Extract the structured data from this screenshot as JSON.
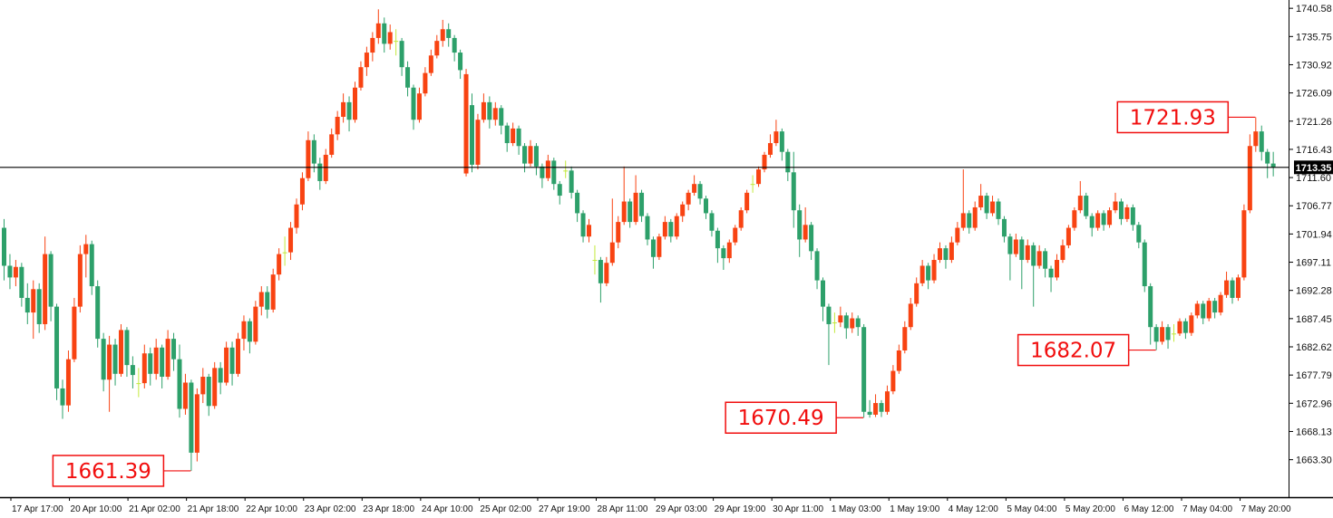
{
  "chart_data": {
    "type": "candlestick",
    "legend_position": "none",
    "grid": false,
    "colors": {
      "up": "#f84312",
      "down": "#2da06a",
      "doji": "#c3e93c",
      "annotation": "#f10e0e",
      "current_price_line": "#000000",
      "tag_bg": "#000000",
      "tag_text": "#ffffff",
      "axis_line": "#000000",
      "background": "#ffffff"
    },
    "price_axis": {
      "side": "right",
      "ticks": [
        "1740.58",
        "1735.75",
        "1730.92",
        "1726.09",
        "1721.26",
        "1716.43",
        "1711.60",
        "1706.77",
        "1701.94",
        "1697.11",
        "1692.28",
        "1687.45",
        "1682.62",
        "1677.79",
        "1672.96",
        "1668.13",
        "1663.30"
      ],
      "current_price": 1713.35,
      "current_price_label": "1713.35"
    },
    "time_axis": {
      "labels": [
        "17 Apr 17:00",
        "20 Apr 10:00",
        "21 Apr 02:00",
        "21 Apr 18:00",
        "22 Apr 10:00",
        "23 Apr 02:00",
        "23 Apr 18:00",
        "24 Apr 10:00",
        "25 Apr 02:00",
        "27 Apr 19:00",
        "28 Apr 11:00",
        "29 Apr 03:00",
        "29 Apr 19:00",
        "30 Apr 11:00",
        "1 May 03:00",
        "1 May 19:00",
        "4 May 12:00",
        "5 May 04:00",
        "5 May 20:00",
        "6 May 12:00",
        "7 May 04:00",
        "7 May 20:00"
      ]
    },
    "annotations": [
      {
        "label": "1661.39",
        "price": 1661.39,
        "candle_index": 32
      },
      {
        "label": "1670.49",
        "price": 1670.49,
        "candle_index": 147
      },
      {
        "label": "1682.07",
        "price": 1682.07,
        "candle_index": 197
      },
      {
        "label": "1721.93",
        "price": 1721.93,
        "candle_index": 214
      }
    ],
    "candles": [
      [
        1703,
        1704.5,
        1694,
        1696.5
      ],
      [
        1696.5,
        1698.5,
        1692.5,
        1694.5
      ],
      [
        1694.5,
        1697.5,
        1693,
        1696.3
      ],
      [
        1696.3,
        1697,
        1689.5,
        1691
      ],
      [
        1691,
        1693.5,
        1686.5,
        1688.5
      ],
      [
        1688.5,
        1694,
        1684,
        1692.5
      ],
      [
        1692.5,
        1693.5,
        1685,
        1686.5
      ],
      [
        1686.5,
        1701.5,
        1685.5,
        1698.5
      ],
      [
        1698.5,
        1699,
        1687,
        1689.5
      ],
      [
        1689.5,
        1690,
        1673.5,
        1675.5
      ],
      [
        1675.5,
        1677,
        1670.3,
        1672.6
      ],
      [
        1672.6,
        1682,
        1671.5,
        1680.5
      ],
      [
        1680.5,
        1691,
        1680,
        1689.5
      ],
      [
        1689.5,
        1700,
        1688.5,
        1698.5
      ],
      [
        1698.5,
        1701.8,
        1694.5,
        1700.2
      ],
      [
        1700.2,
        1700.8,
        1691.5,
        1693
      ],
      [
        1693,
        1694,
        1682.5,
        1684
      ],
      [
        1684,
        1685,
        1675,
        1677
      ],
      [
        1677,
        1684.5,
        1671.5,
        1683
      ],
      [
        1683,
        1684,
        1676,
        1678
      ],
      [
        1678,
        1686.5,
        1677.5,
        1685.5
      ],
      [
        1685.5,
        1686,
        1677.5,
        1679.5
      ],
      [
        1679.5,
        1681,
        1675.5,
        1677.8
      ],
      [
        1676.4,
        1679,
        1674,
        1676.4
      ],
      [
        1676.4,
        1683,
        1675.5,
        1681.5
      ],
      [
        1681.5,
        1682.5,
        1676,
        1678
      ],
      [
        1678,
        1684,
        1677,
        1682.5
      ],
      [
        1682.5,
        1683,
        1675.5,
        1677.5
      ],
      [
        1677.5,
        1685.5,
        1677,
        1684
      ],
      [
        1684,
        1685,
        1678.5,
        1680.5
      ],
      [
        1680.5,
        1683,
        1670.5,
        1672
      ],
      [
        1672,
        1678,
        1671,
        1676.5
      ],
      [
        1676.5,
        1677,
        1661.39,
        1664.5
      ],
      [
        1664.5,
        1675.5,
        1663,
        1674.5
      ],
      [
        1674.5,
        1679,
        1673,
        1677.5
      ],
      [
        1677.5,
        1678,
        1670.8,
        1672.5
      ],
      [
        1672.5,
        1680,
        1672,
        1679
      ],
      [
        1679,
        1680,
        1674.5,
        1676.5
      ],
      [
        1676.5,
        1683.5,
        1676,
        1682.5
      ],
      [
        1682.5,
        1683.5,
        1676,
        1678
      ],
      [
        1678,
        1685,
        1677.5,
        1684
      ],
      [
        1684,
        1688,
        1682,
        1687
      ],
      [
        1687,
        1687.5,
        1681.5,
        1683.5
      ],
      [
        1683.5,
        1690.5,
        1683,
        1689.5
      ],
      [
        1689.5,
        1693,
        1688,
        1692
      ],
      [
        1692,
        1693,
        1687.5,
        1689
      ],
      [
        1689,
        1696,
        1688.5,
        1695
      ],
      [
        1695,
        1699.5,
        1694,
        1698.5
      ],
      [
        1698.8,
        1701.5,
        1696.5,
        1698.8
      ],
      [
        1698.8,
        1704,
        1697.5,
        1703
      ],
      [
        1703,
        1708,
        1702,
        1707
      ],
      [
        1707,
        1712.5,
        1706,
        1711.5
      ],
      [
        1711.5,
        1719.5,
        1711,
        1718
      ],
      [
        1718,
        1719,
        1712.5,
        1714
      ],
      [
        1714,
        1715,
        1709.5,
        1711
      ],
      [
        1711,
        1716.5,
        1710.5,
        1715.5
      ],
      [
        1715.5,
        1720,
        1715,
        1719
      ],
      [
        1719,
        1723,
        1718,
        1722
      ],
      [
        1722,
        1726,
        1721,
        1724.5
      ],
      [
        1724.5,
        1725.5,
        1719.5,
        1721.5
      ],
      [
        1721.5,
        1728,
        1721,
        1727
      ],
      [
        1727,
        1731.5,
        1726.5,
        1730.5
      ],
      [
        1730.5,
        1734,
        1729,
        1733
      ],
      [
        1733,
        1736.5,
        1731.5,
        1735.5
      ],
      [
        1735.5,
        1740.4,
        1734.5,
        1738
      ],
      [
        1738,
        1739,
        1733,
        1734.5
      ],
      [
        1734.5,
        1737.8,
        1733.5,
        1736.5
      ],
      [
        1735,
        1737,
        1732.5,
        1735
      ],
      [
        1735,
        1735.5,
        1729,
        1730.5
      ],
      [
        1730.5,
        1731.5,
        1725.5,
        1727
      ],
      [
        1727,
        1727.5,
        1719.8,
        1721.5
      ],
      [
        1721.5,
        1727,
        1721,
        1726
      ],
      [
        1726,
        1730.5,
        1725.5,
        1729.5
      ],
      [
        1729.5,
        1733.5,
        1729,
        1732.5
      ],
      [
        1732.5,
        1736,
        1732,
        1735
      ],
      [
        1735,
        1738.6,
        1734,
        1737
      ],
      [
        1737,
        1738,
        1734,
        1735.5
      ],
      [
        1735.5,
        1736,
        1731.5,
        1733
      ],
      [
        1733,
        1733.5,
        1728.5,
        1730
      ],
      [
        1712.3,
        1730.2,
        1711.8,
        1729.3
      ],
      [
        1724,
        1726,
        1712.5,
        1713.8
      ],
      [
        1713.8,
        1722.5,
        1713,
        1721.5
      ],
      [
        1721.5,
        1726,
        1721,
        1724.5
      ],
      [
        1724.5,
        1725.5,
        1720,
        1721.5
      ],
      [
        1721.5,
        1724.5,
        1720.5,
        1723.5
      ],
      [
        1723.5,
        1724,
        1719,
        1720.5
      ],
      [
        1720.5,
        1721,
        1716,
        1717.5
      ],
      [
        1717.5,
        1721,
        1717,
        1720
      ],
      [
        1720,
        1720.5,
        1715.5,
        1717
      ],
      [
        1717,
        1717.5,
        1712.5,
        1714
      ],
      [
        1714,
        1718,
        1713.5,
        1717
      ],
      [
        1717,
        1717.5,
        1712,
        1713.5
      ],
      [
        1713.5,
        1714,
        1709.8,
        1711.5
      ],
      [
        1711.5,
        1715.5,
        1711,
        1714.5
      ],
      [
        1714.5,
        1715,
        1709.5,
        1710.5
      ],
      [
        1710.5,
        1711,
        1707,
        1708.5
      ],
      [
        1712.8,
        1714.5,
        1711.5,
        1712.8
      ],
      [
        1712.8,
        1713.5,
        1708,
        1709
      ],
      [
        1709,
        1709.5,
        1704,
        1705.5
      ],
      [
        1705.5,
        1706,
        1700.5,
        1701.5
      ],
      [
        1701.5,
        1704.5,
        1700.5,
        1703.5
      ],
      [
        1697.5,
        1700,
        1695,
        1697.5
      ],
      [
        1697.5,
        1698,
        1690.2,
        1693.5
      ],
      [
        1693.5,
        1698,
        1693,
        1697
      ],
      [
        1697,
        1708,
        1696.5,
        1700.5
      ],
      [
        1700.5,
        1705,
        1699.5,
        1704
      ],
      [
        1704,
        1713.5,
        1703.5,
        1707.5
      ],
      [
        1707.5,
        1708,
        1703,
        1704
      ],
      [
        1704,
        1712,
        1703.5,
        1709
      ],
      [
        1709,
        1709.5,
        1704,
        1705
      ],
      [
        1705,
        1705.5,
        1700,
        1701
      ],
      [
        1701,
        1701.5,
        1696,
        1698
      ],
      [
        1698,
        1702,
        1697.5,
        1701.5
      ],
      [
        1701.5,
        1705,
        1701,
        1704
      ],
      [
        1704,
        1704.5,
        1700.5,
        1701.5
      ],
      [
        1701.5,
        1705.5,
        1701,
        1705
      ],
      [
        1705,
        1707.5,
        1704,
        1707
      ],
      [
        1707,
        1709.5,
        1706,
        1709
      ],
      [
        1709,
        1712,
        1708.5,
        1710.5
      ],
      [
        1710.5,
        1711,
        1707,
        1708
      ],
      [
        1708,
        1708.5,
        1704.5,
        1705.5
      ],
      [
        1705.5,
        1706,
        1701.5,
        1702.5
      ],
      [
        1702.5,
        1703,
        1697,
        1699.5
      ],
      [
        1699.5,
        1700,
        1695.8,
        1697.8
      ],
      [
        1697.8,
        1701,
        1697,
        1700.5
      ],
      [
        1700.5,
        1703.5,
        1700,
        1703
      ],
      [
        1703,
        1706.5,
        1702.5,
        1706
      ],
      [
        1706,
        1709.5,
        1705.5,
        1709
      ],
      [
        1710.5,
        1712,
        1709,
        1710.5
      ],
      [
        1710.5,
        1713.5,
        1710,
        1713
      ],
      [
        1713,
        1716,
        1712.5,
        1715.5
      ],
      [
        1715.5,
        1719,
        1715,
        1717.5
      ],
      [
        1717.5,
        1721.5,
        1717,
        1719.5
      ],
      [
        1719.5,
        1720,
        1714.5,
        1716
      ],
      [
        1716,
        1716.5,
        1711,
        1712.5
      ],
      [
        1712.5,
        1716,
        1703,
        1706
      ],
      [
        1706,
        1707,
        1698,
        1701
      ],
      [
        1701,
        1706.5,
        1700.5,
        1703.5
      ],
      [
        1703.5,
        1704,
        1697.5,
        1699
      ],
      [
        1699,
        1699.5,
        1692.5,
        1694
      ],
      [
        1694,
        1694.5,
        1687,
        1689.5
      ],
      [
        1689.5,
        1690,
        1679.5,
        1686.5
      ],
      [
        1686.8,
        1688.5,
        1685,
        1686.8
      ],
      [
        1686.8,
        1689.5,
        1686,
        1688
      ],
      [
        1688,
        1688.5,
        1684,
        1685.8
      ],
      [
        1685.8,
        1688.5,
        1685,
        1687.5
      ],
      [
        1687.5,
        1688,
        1684.5,
        1686
      ],
      [
        1686,
        1686.5,
        1670.49,
        1671.5
      ],
      [
        1671.5,
        1673.5,
        1670.5,
        1671
      ],
      [
        1671,
        1674.5,
        1670.6,
        1673
      ],
      [
        1673,
        1673.5,
        1670.6,
        1671.5
      ],
      [
        1671.5,
        1676,
        1671,
        1675
      ],
      [
        1675,
        1679.5,
        1674.5,
        1678.5
      ],
      [
        1678.5,
        1683,
        1678,
        1682
      ],
      [
        1682,
        1687,
        1681.5,
        1686
      ],
      [
        1686,
        1691,
        1685.5,
        1690
      ],
      [
        1690,
        1694.5,
        1689.5,
        1693.5
      ],
      [
        1693.5,
        1697.5,
        1693,
        1696.5
      ],
      [
        1696.5,
        1697,
        1692.5,
        1694
      ],
      [
        1694,
        1698.5,
        1693.5,
        1697.5
      ],
      [
        1697.5,
        1700.5,
        1697,
        1699.5
      ],
      [
        1699.5,
        1700,
        1696,
        1697.5
      ],
      [
        1697.5,
        1701.5,
        1697,
        1700.5
      ],
      [
        1700.5,
        1704,
        1700,
        1703
      ],
      [
        1703,
        1713,
        1702.5,
        1705.5
      ],
      [
        1705.5,
        1706,
        1702,
        1703
      ],
      [
        1703,
        1707.5,
        1702.5,
        1706.5
      ],
      [
        1706.5,
        1710.5,
        1706,
        1708.5
      ],
      [
        1708.5,
        1709,
        1704.5,
        1705.5
      ],
      [
        1705.5,
        1708.5,
        1705,
        1707.5
      ],
      [
        1707.5,
        1708,
        1703.5,
        1704.5
      ],
      [
        1704.5,
        1705,
        1700.5,
        1701.5
      ],
      [
        1701.5,
        1702,
        1694,
        1698.5
      ],
      [
        1698.5,
        1702,
        1698,
        1701
      ],
      [
        1701,
        1701.5,
        1692.5,
        1697.5
      ],
      [
        1697.5,
        1701,
        1697,
        1700
      ],
      [
        1700,
        1700.5,
        1689.5,
        1696.5
      ],
      [
        1696.5,
        1700,
        1696,
        1699
      ],
      [
        1699,
        1699.5,
        1694.5,
        1696
      ],
      [
        1696,
        1696.5,
        1692,
        1694.5
      ],
      [
        1694.5,
        1698.5,
        1694,
        1697.5
      ],
      [
        1697.5,
        1701,
        1697,
        1700
      ],
      [
        1700,
        1703.5,
        1699.5,
        1703
      ],
      [
        1703,
        1706.5,
        1702.5,
        1706
      ],
      [
        1706,
        1711,
        1705.5,
        1708.5
      ],
      [
        1708.5,
        1709,
        1704.5,
        1705
      ],
      [
        1705,
        1705.5,
        1701.5,
        1703
      ],
      [
        1703,
        1706,
        1702.5,
        1705.5
      ],
      [
        1705.5,
        1706,
        1702.5,
        1703.5
      ],
      [
        1703.5,
        1706.5,
        1703,
        1706
      ],
      [
        1706,
        1709,
        1705.5,
        1707.5
      ],
      [
        1707.5,
        1708,
        1703.5,
        1704.5
      ],
      [
        1704.5,
        1707,
        1704,
        1706.5
      ],
      [
        1706.5,
        1707,
        1702.5,
        1703.5
      ],
      [
        1703.5,
        1704,
        1699.5,
        1700.5
      ],
      [
        1700.5,
        1701,
        1692,
        1693
      ],
      [
        1693,
        1693.5,
        1683,
        1686
      ],
      [
        1686,
        1686.5,
        1682.07,
        1683.5
      ],
      [
        1683.5,
        1687,
        1683,
        1686
      ],
      [
        1686,
        1686.5,
        1682.3,
        1683.8
      ],
      [
        1684.9,
        1686.5,
        1683.5,
        1684.9
      ],
      [
        1684.9,
        1687.5,
        1684.5,
        1687
      ],
      [
        1687,
        1687.5,
        1684,
        1685
      ],
      [
        1685,
        1688.5,
        1684.5,
        1688
      ],
      [
        1688,
        1690.5,
        1687.5,
        1690
      ],
      [
        1690,
        1690.5,
        1686.5,
        1687.5
      ],
      [
        1687.5,
        1691,
        1687,
        1690.5
      ],
      [
        1690.5,
        1691,
        1687.5,
        1688.5
      ],
      [
        1688.5,
        1692,
        1688,
        1691.5
      ],
      [
        1691.5,
        1695.5,
        1691,
        1694
      ],
      [
        1694,
        1694.5,
        1690,
        1691
      ],
      [
        1691,
        1695,
        1690.5,
        1694.5
      ],
      [
        1694.5,
        1707,
        1694,
        1706
      ],
      [
        1706,
        1719,
        1705.5,
        1717
      ],
      [
        1717,
        1721.93,
        1716,
        1719.5
      ],
      [
        1719.5,
        1720.5,
        1714.5,
        1716
      ],
      [
        1716,
        1716.5,
        1711.5,
        1714
      ],
      [
        1714,
        1716,
        1711.8,
        1713.35
      ]
    ]
  }
}
